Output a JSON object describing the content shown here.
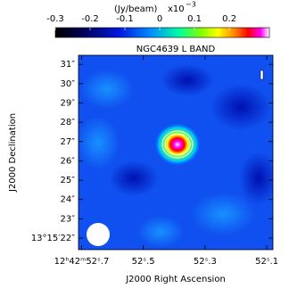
{
  "chart_data": {
    "type": "image",
    "title": "NGC4639 L BAND",
    "x_label": "J2000 Right Ascension",
    "y_label": "J2000 Declination",
    "colorbar": {
      "unit": "(Jy/beam)",
      "scale": "x10",
      "scale_exp": "−3",
      "lim": [
        -0.3,
        0.315
      ],
      "ticks": [
        -0.3,
        -0.2,
        -0.1,
        0,
        0.1,
        0.2
      ]
    },
    "xlim": [
      52.71,
      52.08
    ],
    "xticks": [
      {
        "value": 52.7,
        "label": "12ʰ42ᵐ52ˢ.7"
      },
      {
        "value": 52.5,
        "label": "52ˢ.5"
      },
      {
        "value": 52.3,
        "label": "52ˢ.3"
      },
      {
        "value": 52.1,
        "label": "52ˢ.1"
      }
    ],
    "ylim": [
      21.4,
      31.47
    ],
    "yticks": [
      {
        "value": 22,
        "label": "13°15′22″"
      },
      {
        "value": 23,
        "label": "23″"
      },
      {
        "value": 24,
        "label": "24″"
      },
      {
        "value": 25,
        "label": "25″"
      },
      {
        "value": 26,
        "label": "26″"
      },
      {
        "value": 27,
        "label": "27″"
      },
      {
        "value": 28,
        "label": "28″"
      },
      {
        "value": 29,
        "label": "29″"
      },
      {
        "value": 30,
        "label": "30″"
      },
      {
        "value": 31,
        "label": "31″"
      }
    ]
  }
}
